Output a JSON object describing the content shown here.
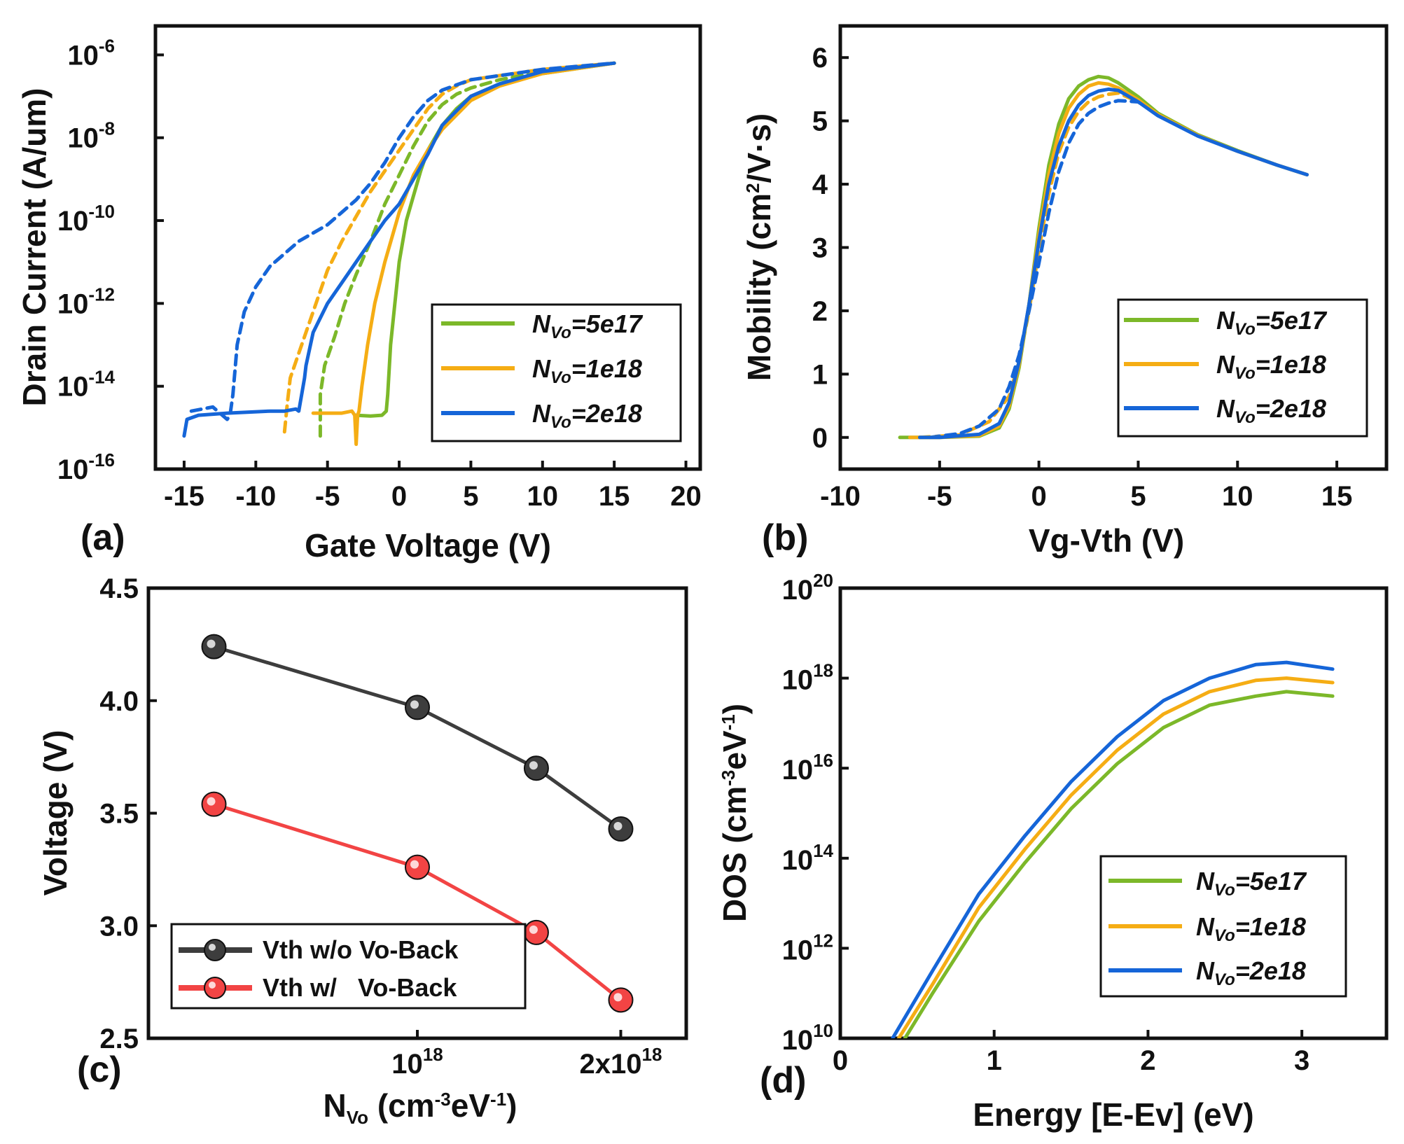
{
  "colors": {
    "green": "#7cb829",
    "orange": "#f5ad14",
    "blue": "#1565d8",
    "dark": "#3d3d3d",
    "red": "#f24444"
  },
  "chart_data": [
    {
      "id": "a",
      "panel_label": "(a)",
      "type": "line",
      "xlabel": "Gate Voltage (V)",
      "ylabel": "Drain Current (A/um)",
      "xlim": [
        -17,
        21
      ],
      "ylim_log10": [
        -16,
        -5.3
      ],
      "xticks": [
        -15,
        -10,
        -5,
        0,
        5,
        10,
        15,
        20
      ],
      "yticks_exp": [
        -16,
        -14,
        -12,
        -10,
        -8,
        -6
      ],
      "y_scale": "log",
      "legend_position": "lower-right",
      "series": [
        {
          "name": "NVo=5e17",
          "legend_main": "N",
          "legend_sub": "Vo",
          "legend_rest": "=5e17",
          "color": "green",
          "style": "solid",
          "x": [
            -3,
            -2,
            -1.2,
            -0.9,
            -0.8,
            -0.6,
            -0.3,
            0,
            0.5,
            1,
            1.5,
            2,
            3,
            4,
            5,
            7,
            10,
            12,
            15
          ],
          "log10y": [
            -14.7,
            -14.72,
            -14.7,
            -14.6,
            -14.2,
            -13,
            -12,
            -11,
            -10,
            -9.4,
            -8.8,
            -8.3,
            -7.7,
            -7.3,
            -7,
            -6.7,
            -6.45,
            -6.35,
            -6.2
          ]
        },
        {
          "name": "NVo=1e18",
          "color": "orange",
          "style": "solid",
          "x": [
            -6,
            -4,
            -3.3,
            -3.1,
            -3,
            -2.9,
            -2.8,
            -2.6,
            -2.2,
            -1.7,
            -1,
            0,
            1,
            2,
            3,
            5,
            7,
            10,
            15
          ],
          "log10y": [
            -14.65,
            -14.65,
            -14.6,
            -14.7,
            -15.4,
            -14.7,
            -14.6,
            -14,
            -13,
            -12,
            -11,
            -9.8,
            -8.9,
            -8.3,
            -7.8,
            -7.1,
            -6.75,
            -6.45,
            -6.2
          ]
        },
        {
          "name": "NVo=2e18",
          "color": "blue",
          "style": "solid",
          "x": [
            -15,
            -14.8,
            -14,
            -12,
            -9,
            -8,
            -7.2,
            -7,
            -6.6,
            -6.5,
            -6,
            -5,
            -4,
            -3,
            -2,
            -1,
            0,
            1,
            2,
            3,
            5,
            7,
            10,
            15
          ],
          "log10y": [
            -15.2,
            -14.8,
            -14.7,
            -14.65,
            -14.6,
            -14.6,
            -14.55,
            -14.6,
            -13.8,
            -13.5,
            -12.7,
            -12,
            -11.5,
            -11,
            -10.5,
            -10,
            -9.6,
            -9,
            -8.4,
            -7.7,
            -7,
            -6.7,
            -6.4,
            -6.2
          ]
        },
        {
          "name": "NVo=5e17 dashed",
          "color": "green",
          "style": "dashed",
          "x": [
            -5.5,
            -5.5,
            -5.2,
            -4.5,
            -3.8,
            -3,
            -2,
            -1,
            0,
            1,
            2,
            3,
            4,
            5,
            7,
            10,
            15
          ],
          "log10y": [
            -15.2,
            -14.2,
            -13.5,
            -12.8,
            -12,
            -11.3,
            -10.5,
            -9.6,
            -8.9,
            -8.2,
            -7.6,
            -7.2,
            -6.95,
            -6.8,
            -6.6,
            -6.4,
            -6.2
          ]
        },
        {
          "name": "NVo=1e18 dashed",
          "color": "orange",
          "style": "dashed",
          "x": [
            -8,
            -7.8,
            -7.6,
            -7,
            -6,
            -5,
            -4,
            -3,
            -2,
            -1,
            0,
            1,
            2,
            3,
            4,
            5,
            7,
            10,
            15
          ],
          "log10y": [
            -15.1,
            -14.4,
            -13.8,
            -13.2,
            -12.2,
            -11.2,
            -10.5,
            -9.9,
            -9.3,
            -8.8,
            -8.3,
            -7.8,
            -7.3,
            -6.95,
            -6.75,
            -6.6,
            -6.5,
            -6.35,
            -6.2
          ]
        },
        {
          "name": "NVo=2e18 dashed",
          "color": "blue",
          "style": "dashed",
          "x": [
            -14.5,
            -13,
            -12,
            -11.8,
            -11.6,
            -11.3,
            -10.8,
            -10,
            -9,
            -8,
            -7,
            -6,
            -5,
            -4,
            -3,
            -2,
            -1,
            0,
            1,
            2,
            3,
            5,
            7,
            10,
            15
          ],
          "log10y": [
            -14.6,
            -14.5,
            -14.8,
            -14.7,
            -14.2,
            -13,
            -12.2,
            -11.6,
            -11.1,
            -10.8,
            -10.5,
            -10.3,
            -10.1,
            -9.8,
            -9.5,
            -9.1,
            -8.6,
            -8,
            -7.5,
            -7.1,
            -6.85,
            -6.6,
            -6.5,
            -6.35,
            -6.2
          ]
        }
      ]
    },
    {
      "id": "b",
      "panel_label": "(b)",
      "type": "line",
      "xlabel": "Vg-Vth (V)",
      "ylabel_main": "Mobility (cm",
      "ylabel_sup": "2",
      "ylabel_rest": "/V·s)",
      "xlim": [
        -10,
        17.5
      ],
      "ylim": [
        -0.5,
        6.5
      ],
      "xticks": [
        -10,
        -5,
        0,
        5,
        10,
        15
      ],
      "yticks": [
        0,
        1,
        2,
        3,
        4,
        5,
        6
      ],
      "legend_position": "lower-right",
      "series": [
        {
          "name": "NVo=5e17",
          "color": "green",
          "style": "solid",
          "x": [
            -7,
            -5,
            -3,
            -2,
            -1.5,
            -1,
            -0.5,
            0,
            0.5,
            1,
            1.5,
            2,
            2.5,
            3,
            3.5,
            4,
            5,
            6,
            8,
            10,
            12,
            13.5
          ],
          "y": [
            0,
            0,
            0.02,
            0.15,
            0.45,
            1.1,
            2.1,
            3.3,
            4.3,
            4.95,
            5.35,
            5.55,
            5.65,
            5.7,
            5.68,
            5.6,
            5.38,
            5.12,
            4.78,
            4.53,
            4.3,
            4.15
          ]
        },
        {
          "name": "NVo=1e18",
          "color": "orange",
          "style": "solid",
          "x": [
            -6.5,
            -5,
            -3,
            -2,
            -1.5,
            -1,
            -0.5,
            0,
            0.5,
            1,
            1.5,
            2,
            2.5,
            3,
            3.5,
            4,
            5,
            6,
            8,
            10,
            12,
            13.5
          ],
          "y": [
            0,
            0,
            0.03,
            0.18,
            0.5,
            1.15,
            2.1,
            3.2,
            4.15,
            4.8,
            5.2,
            5.42,
            5.55,
            5.6,
            5.58,
            5.52,
            5.33,
            5.1,
            4.77,
            4.52,
            4.3,
            4.15
          ]
        },
        {
          "name": "NVo=2e18",
          "color": "blue",
          "style": "solid",
          "x": [
            -6,
            -5,
            -3,
            -2,
            -1.5,
            -1,
            -0.5,
            0,
            0.5,
            1,
            1.5,
            2,
            2.5,
            3,
            3.5,
            4,
            5,
            6,
            8,
            10,
            12,
            13.5
          ],
          "y": [
            0,
            0,
            0.05,
            0.22,
            0.55,
            1.2,
            2.1,
            3.1,
            4.0,
            4.6,
            5.0,
            5.25,
            5.4,
            5.47,
            5.5,
            5.48,
            5.3,
            5.08,
            4.76,
            4.52,
            4.3,
            4.15
          ]
        },
        {
          "name": "NVo=1e18 dashed",
          "color": "orange",
          "style": "dashed",
          "x": [
            -6,
            -4,
            -2.5,
            -1.5,
            -1,
            -0.5,
            0,
            0.5,
            1,
            1.5,
            2,
            2.5,
            3,
            3.5,
            4,
            5,
            6
          ],
          "y": [
            0,
            0.04,
            0.25,
            0.65,
            1.2,
            2.0,
            2.95,
            3.85,
            4.5,
            4.9,
            5.15,
            5.3,
            5.38,
            5.42,
            5.44,
            5.3,
            5.1
          ]
        },
        {
          "name": "NVo=2e18 dashed",
          "color": "blue",
          "style": "dashed",
          "x": [
            -5.5,
            -4,
            -3,
            -2,
            -1.5,
            -1,
            -0.5,
            0,
            0.5,
            1,
            1.5,
            2,
            2.5,
            3,
            3.5,
            4,
            5,
            6
          ],
          "y": [
            0,
            0.06,
            0.18,
            0.45,
            0.8,
            1.3,
            2.0,
            2.75,
            3.55,
            4.2,
            4.65,
            4.95,
            5.12,
            5.22,
            5.28,
            5.32,
            5.3,
            5.1
          ]
        }
      ]
    },
    {
      "id": "c",
      "panel_label": "(c)",
      "type": "line",
      "xlabel_main": "N",
      "xlabel_sub": "Vo",
      "xlabel_mid": " (cm",
      "xlabel_sup1": "-3",
      "xlabel_mid2": "eV",
      "xlabel_sup2": "-1",
      "xlabel_end": ")",
      "ylabel": "Voltage (V)",
      "x_scale": "log",
      "xlim": [
        4e+17,
        2.5e+18
      ],
      "ylim": [
        2.5,
        4.5
      ],
      "xticks": [
        {
          "value": 1e+18,
          "label_main": "10",
          "label_sup": "18"
        },
        {
          "value": 2e+18,
          "label_main": "2x10",
          "label_sup": "18"
        }
      ],
      "yticks": [
        "2.5",
        "3.0",
        "3.5",
        "4.0",
        "4.5"
      ],
      "legend_position": "lower-left",
      "series": [
        {
          "name": "Vth w/o Vo-Back",
          "color": "dark",
          "x": [
            5e+17,
            1e+18,
            1.5e+18,
            2e+18
          ],
          "y": [
            4.24,
            3.97,
            3.7,
            3.43
          ]
        },
        {
          "name": "Vth w/   Vo-Back",
          "color": "red",
          "x": [
            5e+17,
            1e+18,
            1.5e+18,
            2e+18
          ],
          "y": [
            3.54,
            3.26,
            2.97,
            2.67
          ]
        }
      ]
    },
    {
      "id": "d",
      "panel_label": "(d)",
      "type": "line",
      "xlabel": "Energy [E-Ev] (eV)",
      "ylabel_main": "DOS (cm",
      "ylabel_sup1": "-3",
      "ylabel_mid": "eV",
      "ylabel_sup2": "-1",
      "ylabel_end": ")",
      "y_scale": "log",
      "xlim": [
        0,
        3.55
      ],
      "ylim_log10": [
        10,
        20
      ],
      "xticks": [
        0,
        1,
        2,
        3
      ],
      "yticks_exp": [
        10,
        12,
        14,
        16,
        18,
        20
      ],
      "legend_position": "lower-right",
      "series": [
        {
          "name": "NVo=5e17",
          "color": "green",
          "x": [
            0.42,
            0.6,
            0.9,
            1.2,
            1.5,
            1.8,
            2.1,
            2.4,
            2.7,
            2.9,
            3.2
          ],
          "log10y": [
            10,
            11,
            12.6,
            13.9,
            15.1,
            16.1,
            16.9,
            17.4,
            17.6,
            17.7,
            17.6
          ]
        },
        {
          "name": "NVo=1e18",
          "color": "orange",
          "x": [
            0.38,
            0.6,
            0.9,
            1.2,
            1.5,
            1.8,
            2.1,
            2.4,
            2.7,
            2.9,
            3.2
          ],
          "log10y": [
            10,
            11.2,
            12.9,
            14.2,
            15.4,
            16.4,
            17.2,
            17.7,
            17.95,
            18.0,
            17.9
          ]
        },
        {
          "name": "NVo=2e18",
          "color": "blue",
          "x": [
            0.34,
            0.6,
            0.9,
            1.2,
            1.5,
            1.8,
            2.1,
            2.4,
            2.7,
            2.9,
            3.2
          ],
          "log10y": [
            10,
            11.5,
            13.2,
            14.5,
            15.7,
            16.7,
            17.5,
            18.0,
            18.3,
            18.35,
            18.2
          ]
        }
      ]
    }
  ],
  "legend_ab": [
    {
      "main": "N",
      "sub": "Vo",
      "rest": "=5e17",
      "color": "green"
    },
    {
      "main": "N",
      "sub": "Vo",
      "rest": "=1e18",
      "color": "orange"
    },
    {
      "main": "N",
      "sub": "Vo",
      "rest": "=2e18",
      "color": "blue"
    }
  ],
  "ticks_a_x": [
    "-15",
    "-10",
    "-5",
    "0",
    "5",
    "10",
    "15",
    "20"
  ],
  "ticks_b_x": [
    "-10",
    "-5",
    "0",
    "5",
    "10",
    "15"
  ],
  "ticks_b_y": [
    "0",
    "1",
    "2",
    "3",
    "4",
    "5",
    "6"
  ],
  "ticks_d_x": [
    "0",
    "1",
    "2",
    "3"
  ],
  "tick_base": "10",
  "ticks_a_y_exp": [
    "-16",
    "-14",
    "-12",
    "-10",
    "-8",
    "-6"
  ],
  "ticks_d_y_exp": [
    "10",
    "12",
    "14",
    "16",
    "18",
    "20"
  ]
}
